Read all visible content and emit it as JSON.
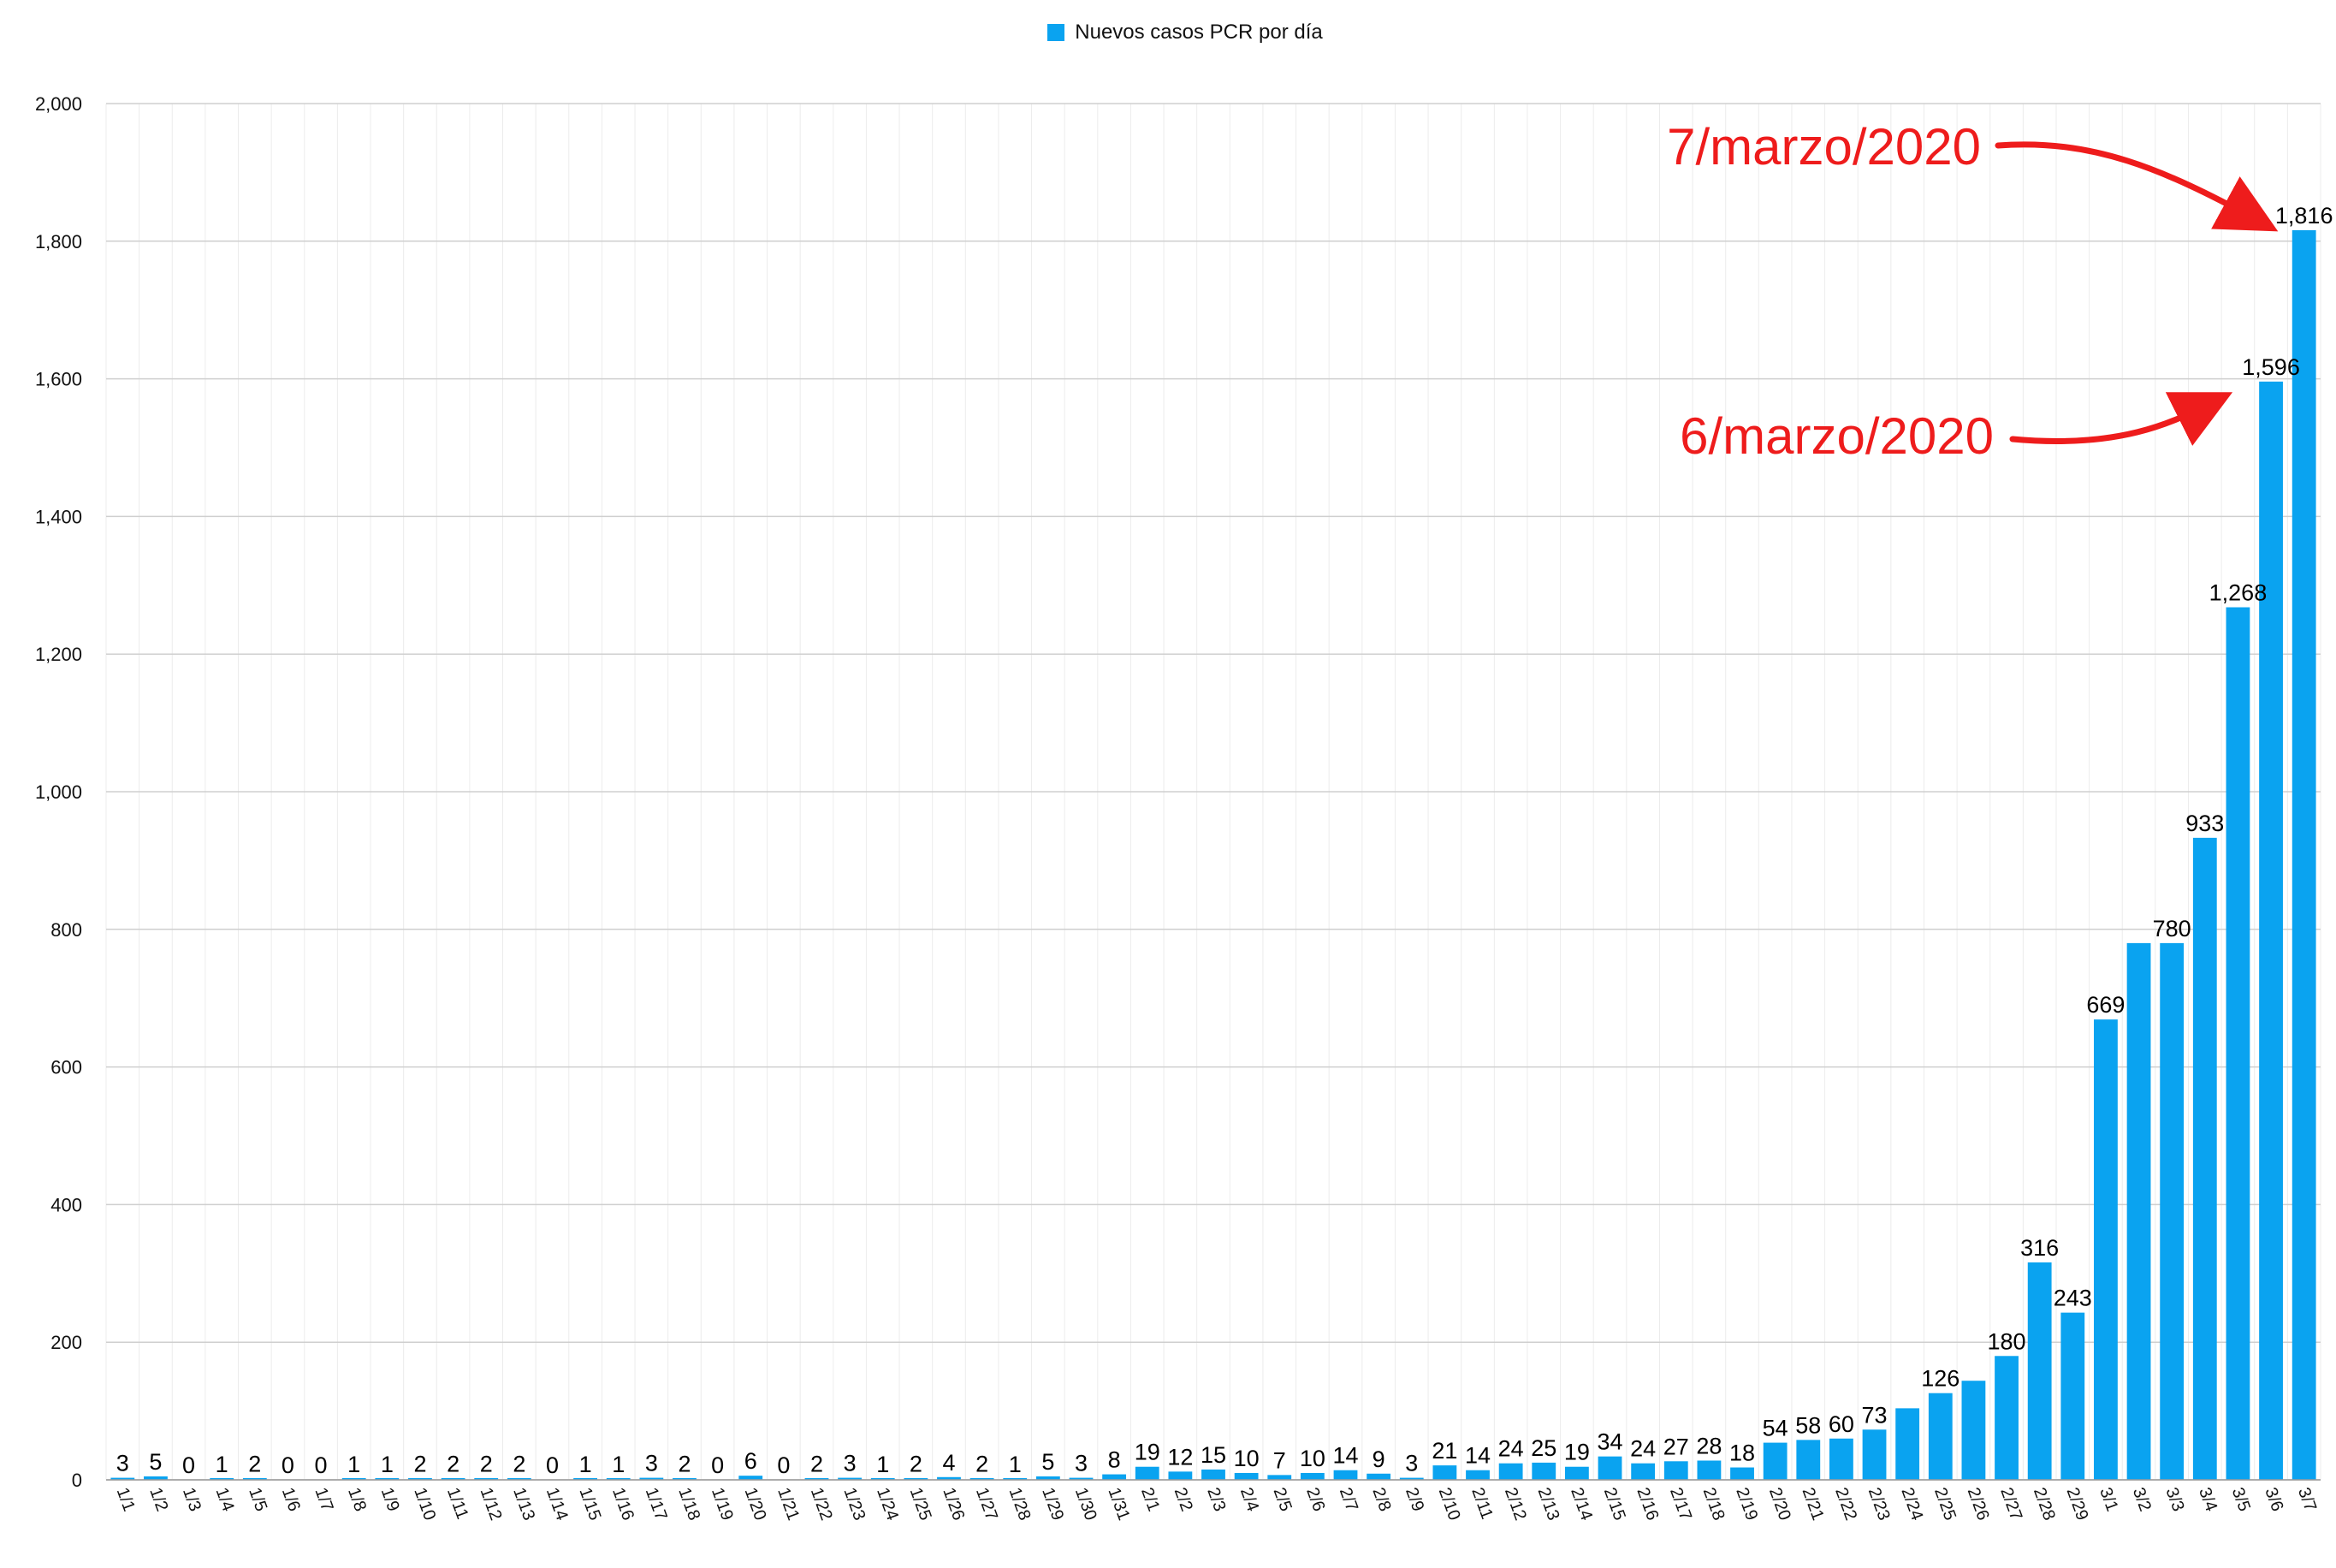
{
  "colors": {
    "bar": "#0AA3F0",
    "annotation": "#EE1C1C",
    "grid_major": "#cfcfcf",
    "grid_minor": "#ececec"
  },
  "legend": {
    "label": "Nuevos casos PCR por día"
  },
  "annotations": [
    {
      "text": "7/marzo/2020",
      "target": "3/7"
    },
    {
      "text": "6/marzo/2020",
      "target": "3/6"
    }
  ],
  "chart_data": {
    "type": "bar",
    "title": "",
    "xlabel": "",
    "ylabel": "",
    "ylim": [
      0,
      2000
    ],
    "yticks": [
      0,
      200,
      400,
      600,
      800,
      1000,
      1200,
      1400,
      1600,
      1800,
      2000
    ],
    "ytick_labels": [
      "0",
      "200",
      "400",
      "600",
      "800",
      "1,000",
      "1,200",
      "1,400",
      "1,600",
      "1,800",
      "2,000"
    ],
    "grid": true,
    "legend_position": "top-center",
    "categories": [
      "1/1",
      "1/2",
      "1/3",
      "1/4",
      "1/5",
      "1/6",
      "1/7",
      "1/8",
      "1/9",
      "1/10",
      "1/11",
      "1/12",
      "1/13",
      "1/14",
      "1/15",
      "1/16",
      "1/17",
      "1/18",
      "1/19",
      "1/20",
      "1/21",
      "1/22",
      "1/23",
      "1/24",
      "1/25",
      "1/26",
      "1/27",
      "1/28",
      "1/29",
      "1/30",
      "1/31",
      "2/1",
      "2/2",
      "2/3",
      "2/4",
      "2/5",
      "2/6",
      "2/7",
      "2/8",
      "2/9",
      "2/10",
      "2/11",
      "2/12",
      "2/13",
      "2/14",
      "2/15",
      "2/16",
      "2/17",
      "2/18",
      "2/19",
      "2/20",
      "2/21",
      "2/22",
      "2/23",
      "2/24",
      "2/25",
      "2/26",
      "2/27",
      "2/28",
      "2/29",
      "3/1",
      "3/2",
      "3/3",
      "3/4",
      "3/5",
      "3/6",
      "3/7"
    ],
    "series": [
      {
        "name": "Nuevos casos PCR por día",
        "values": [
          3,
          5,
          0,
          1,
          2,
          0,
          0,
          1,
          1,
          2,
          2,
          2,
          2,
          0,
          1,
          1,
          3,
          2,
          0,
          6,
          0,
          2,
          3,
          1,
          2,
          4,
          2,
          1,
          5,
          3,
          8,
          19,
          12,
          15,
          10,
          7,
          10,
          14,
          9,
          3,
          21,
          14,
          24,
          25,
          19,
          34,
          24,
          27,
          28,
          18,
          54,
          58,
          60,
          73,
          104,
          126,
          144,
          180,
          316,
          243,
          669,
          780,
          780,
          933,
          1268,
          1596,
          1816
        ],
        "labels": [
          "3",
          "5",
          "0",
          "1",
          "2",
          "0",
          "0",
          "1",
          "1",
          "2",
          "2",
          "2",
          "2",
          "0",
          "1",
          "1",
          "3",
          "2",
          "0",
          "6",
          "0",
          "2",
          "3",
          "1",
          "2",
          "4",
          "2",
          "1",
          "5",
          "3",
          "8",
          "19",
          "12",
          "15",
          "10",
          "7",
          "10",
          "14",
          "9",
          "3",
          "21",
          "14",
          "24",
          "25",
          "19",
          "34",
          "24",
          "27",
          "28",
          "18",
          "54",
          "58",
          "60",
          "73",
          "",
          "126",
          "",
          "180",
          "316",
          "243",
          "669",
          "",
          "780",
          "933",
          "1,268",
          "1,596",
          "1,816"
        ]
      }
    ]
  }
}
